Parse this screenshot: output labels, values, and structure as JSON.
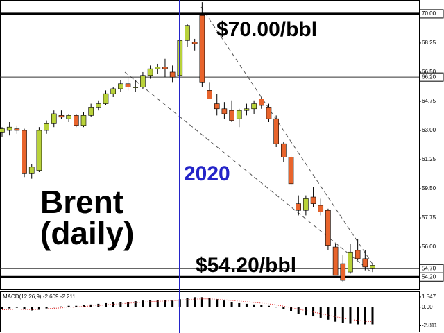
{
  "chart_data": {
    "type": "candlestick",
    "open": [
      62.9,
      63.0,
      63.1,
      63.0,
      60.4,
      60.6,
      63.0,
      63.4,
      63.9,
      63.7,
      63.9,
      63.3,
      63.9,
      64.4,
      64.6,
      65.2,
      65.5,
      65.8,
      65.6,
      65.6,
      66.3,
      66.7,
      66.8,
      66.5,
      66.3,
      68.4,
      68.3,
      69.9,
      65.4,
      64.6,
      64.3,
      64.2,
      63.7,
      64.2,
      64.3,
      64.9,
      64.4,
      63.7,
      62.2,
      61.4,
      58.6,
      58.2,
      59.0,
      58.5,
      58.2,
      56.0,
      55.0,
      54.5,
      55.8,
      55.3,
      54.7
    ],
    "high": [
      63.2,
      63.5,
      63.3,
      63.1,
      61.0,
      63.2,
      63.6,
      64.2,
      64.2,
      64.0,
      64.0,
      64.1,
      64.6,
      64.8,
      65.4,
      65.6,
      66.0,
      66.2,
      66.0,
      66.5,
      66.9,
      67.0,
      67.3,
      66.9,
      68.4,
      69.4,
      68.5,
      70.7,
      65.9,
      65.2,
      64.7,
      64.8,
      64.3,
      64.6,
      64.8,
      65.0,
      64.6,
      63.9,
      62.3,
      61.5,
      59.1,
      59.1,
      59.6,
      58.9,
      58.3,
      56.2,
      55.5,
      56.2,
      56.5,
      55.8,
      55.0
    ],
    "low": [
      62.6,
      62.7,
      62.8,
      60.2,
      60.1,
      60.5,
      62.8,
      63.2,
      63.7,
      63.5,
      63.2,
      63.2,
      63.8,
      64.2,
      64.5,
      65.0,
      65.3,
      65.4,
      65.3,
      65.5,
      66.1,
      66.4,
      66.2,
      65.9,
      66.1,
      68.0,
      67.8,
      65.6,
      64.9,
      63.9,
      63.7,
      63.5,
      63.2,
      63.9,
      64.0,
      64.3,
      63.5,
      62.0,
      61.1,
      59.6,
      57.9,
      57.9,
      58.4,
      57.9,
      55.8,
      54.3,
      53.9,
      54.4,
      55.2,
      54.6,
      54.5
    ],
    "close": [
      63.1,
      63.2,
      63.0,
      60.4,
      60.8,
      63.0,
      63.4,
      64.0,
      63.8,
      63.9,
      63.3,
      63.9,
      64.4,
      64.6,
      65.2,
      65.5,
      65.8,
      65.6,
      65.6,
      66.3,
      66.7,
      66.8,
      66.7,
      66.2,
      68.4,
      69.3,
      68.2,
      65.9,
      64.9,
      64.3,
      64.0,
      63.6,
      64.2,
      64.3,
      64.6,
      64.5,
      63.7,
      62.2,
      61.4,
      59.8,
      58.2,
      58.9,
      58.6,
      58.1,
      56.1,
      54.3,
      54.0,
      55.7,
      55.3,
      54.8,
      54.9
    ],
    "up_color": "#b9d23a",
    "down_color": "#e8642c",
    "ylim": [
      53.42,
      70.83
    ],
    "yticks": [
      {
        "value": 70,
        "label": "70.00"
      },
      68.25,
      {
        "value": 66.5,
        "label": "66.50"
      },
      64.75,
      {
        "value": 63,
        "label": "63.00"
      },
      61.25,
      {
        "value": 59.5,
        "label": "59.50"
      },
      57.75,
      {
        "value": 56,
        "label": "56.00"
      }
    ],
    "levels": [
      {
        "value": 70,
        "label": "70.00",
        "thick": true
      },
      {
        "value": 66.2,
        "label": "66.20",
        "thick": false
      },
      {
        "value": 54.7,
        "label": "54.70",
        "thick": false
      },
      {
        "value": 54.2,
        "label": "54.20",
        "thick": true
      }
    ],
    "annotations": {
      "high": "$70.00/bbl",
      "low": "$54.20/bbl",
      "year": "2020",
      "name": "Brent",
      "period": "(daily)"
    },
    "macd": {
      "label": "MACD(12,26,9) -2.609 -2.211",
      "histogram": [
        -0.3,
        -0.2,
        -0.1,
        -0.3,
        -0.5,
        -0.4,
        -0.2,
        0.0,
        0.1,
        0.2,
        0.2,
        0.3,
        0.4,
        0.5,
        0.6,
        0.7,
        0.8,
        0.8,
        0.9,
        1.0,
        1.1,
        1.1,
        1.1,
        1.0,
        1.2,
        1.4,
        1.5,
        1.5,
        1.4,
        1.2,
        1.0,
        0.8,
        0.6,
        0.5,
        0.4,
        0.3,
        0.2,
        0.0,
        -0.3,
        -0.6,
        -1.0,
        -1.2,
        -1.4,
        -1.6,
        -1.9,
        -2.2,
        -2.4,
        -2.5,
        -2.6,
        -2.6,
        -2.6
      ],
      "signal": [
        -0.4,
        -0.35,
        -0.3,
        -0.35,
        -0.36,
        -0.33,
        -0.26,
        -0.19,
        -0.11,
        -0.05,
        0.02,
        0.1,
        0.18,
        0.26,
        0.35,
        0.44,
        0.51,
        0.59,
        0.67,
        0.76,
        0.83,
        0.89,
        0.91,
        0.97,
        1.05,
        1.14,
        1.21,
        1.25,
        1.24,
        1.19,
        1.11,
        1.01,
        0.91,
        0.81,
        0.71,
        0.61,
        0.49,
        0.33,
        0.14,
        -0.09,
        -0.31,
        -0.53,
        -0.74,
        -0.97,
        -1.22,
        -1.46,
        -1.67,
        -1.86,
        -2.01,
        -2.13,
        -2.2
      ],
      "signal_color": "#e02020",
      "bar_color": "#000000",
      "ylim": [
        -3.7,
        2.27
      ],
      "yticks": [
        1.547,
        {
          "value": 0,
          "label": "0.00"
        },
        -2.811
      ]
    }
  }
}
